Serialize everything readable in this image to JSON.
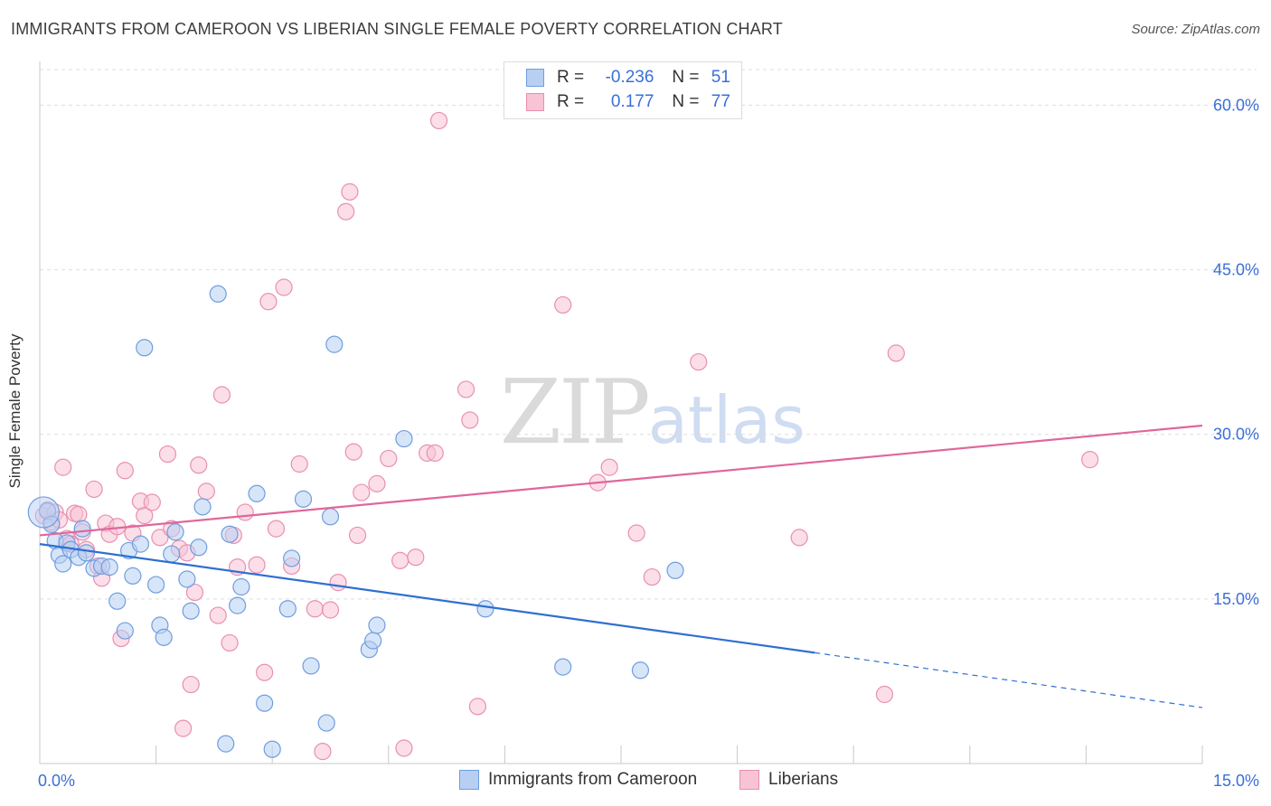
{
  "title": "IMMIGRANTS FROM CAMEROON VS LIBERIAN SINGLE FEMALE POVERTY CORRELATION CHART",
  "source": "Source: ZipAtlas.com",
  "watermark": {
    "zip": "ZIP",
    "atlas": "atlas"
  },
  "legend": {
    "series1": {
      "r_label": "R =",
      "r_value": "-0.236",
      "n_label": "N =",
      "n_value": "51"
    },
    "series2": {
      "r_label": "R =",
      "r_value": "0.177",
      "n_label": "N =",
      "n_value": "77"
    }
  },
  "colors": {
    "blue_fill": "#b7cff3",
    "blue_stroke": "#6f9de0",
    "blue_line": "#2f6fd0",
    "pink_fill": "#f7c3d5",
    "pink_stroke": "#e98fb0",
    "pink_line": "#e0679a",
    "tick_label": "#3a6fd8",
    "grid": "#dddddd"
  },
  "chart_data": {
    "type": "scatter",
    "title": "IMMIGRANTS FROM CAMEROON VS LIBERIAN SINGLE FEMALE POVERTY CORRELATION CHART",
    "xlabel": "",
    "ylabel": "Single Female Poverty",
    "xlim": [
      0,
      15
    ],
    "ylim": [
      0,
      63
    ],
    "x_tick_labels": [
      {
        "value": 0,
        "label": "0.0%"
      },
      {
        "value": 15,
        "label": "15.0%"
      }
    ],
    "y_tick_labels": [
      {
        "value": 15,
        "label": "15.0%"
      },
      {
        "value": 30,
        "label": "30.0%"
      },
      {
        "value": 45,
        "label": "45.0%"
      },
      {
        "value": 60,
        "label": "60.0%"
      }
    ],
    "series": [
      {
        "name": "Immigrants from Cameroon",
        "color": "#b7cff3",
        "r": -0.236,
        "n": 51,
        "trend": {
          "x1": 0,
          "y1": 20.0,
          "x2": 10.0,
          "y2": 10.1,
          "dash_to_x": 15,
          "dash_to_y": 5.1
        },
        "points": [
          [
            0.1,
            23.0
          ],
          [
            0.15,
            21.8
          ],
          [
            0.2,
            20.3
          ],
          [
            0.25,
            19.0
          ],
          [
            0.3,
            18.2
          ],
          [
            0.35,
            20.1
          ],
          [
            0.4,
            19.5
          ],
          [
            0.5,
            18.8
          ],
          [
            0.55,
            21.4
          ],
          [
            0.6,
            19.2
          ],
          [
            0.7,
            17.8
          ],
          [
            0.8,
            18.0
          ],
          [
            0.9,
            17.9
          ],
          [
            1.0,
            14.8
          ],
          [
            1.1,
            12.1
          ],
          [
            1.15,
            19.4
          ],
          [
            1.2,
            17.1
          ],
          [
            1.3,
            20.0
          ],
          [
            1.35,
            37.9
          ],
          [
            1.5,
            16.3
          ],
          [
            1.55,
            12.6
          ],
          [
            1.6,
            11.5
          ],
          [
            1.7,
            19.1
          ],
          [
            1.75,
            21.1
          ],
          [
            1.9,
            16.8
          ],
          [
            1.95,
            13.9
          ],
          [
            2.05,
            19.7
          ],
          [
            2.1,
            23.4
          ],
          [
            2.3,
            42.8
          ],
          [
            2.4,
            1.8
          ],
          [
            2.45,
            20.9
          ],
          [
            2.55,
            14.4
          ],
          [
            2.6,
            16.1
          ],
          [
            2.8,
            24.6
          ],
          [
            2.9,
            5.5
          ],
          [
            3.0,
            1.3
          ],
          [
            3.2,
            14.1
          ],
          [
            3.25,
            18.7
          ],
          [
            3.4,
            24.1
          ],
          [
            3.5,
            8.9
          ],
          [
            3.7,
            3.7
          ],
          [
            3.75,
            22.5
          ],
          [
            3.8,
            38.2
          ],
          [
            4.25,
            10.4
          ],
          [
            4.3,
            11.2
          ],
          [
            4.35,
            12.6
          ],
          [
            4.7,
            29.6
          ],
          [
            5.75,
            14.1
          ],
          [
            6.75,
            8.8
          ],
          [
            7.75,
            8.5
          ],
          [
            8.2,
            17.6
          ]
        ]
      },
      {
        "name": "Liberians",
        "color": "#f7c3d5",
        "r": 0.177,
        "n": 77,
        "trend": {
          "x1": 0,
          "y1": 20.8,
          "x2": 15,
          "y2": 30.8
        },
        "points": [
          [
            0.05,
            22.6
          ],
          [
            0.1,
            23.1
          ],
          [
            0.15,
            22.0
          ],
          [
            0.2,
            22.9
          ],
          [
            0.3,
            27.0
          ],
          [
            0.35,
            20.5
          ],
          [
            0.4,
            20.0
          ],
          [
            0.45,
            22.8
          ],
          [
            0.5,
            22.7
          ],
          [
            0.55,
            21.1
          ],
          [
            0.6,
            19.5
          ],
          [
            0.7,
            25.0
          ],
          [
            0.75,
            18.0
          ],
          [
            0.8,
            16.9
          ],
          [
            0.85,
            21.9
          ],
          [
            0.9,
            20.9
          ],
          [
            1.0,
            21.6
          ],
          [
            1.05,
            11.4
          ],
          [
            1.1,
            26.7
          ],
          [
            1.2,
            21.0
          ],
          [
            1.3,
            23.9
          ],
          [
            1.35,
            22.6
          ],
          [
            1.45,
            23.8
          ],
          [
            1.55,
            20.6
          ],
          [
            1.65,
            28.2
          ],
          [
            1.7,
            21.4
          ],
          [
            1.8,
            19.6
          ],
          [
            1.85,
            3.2
          ],
          [
            1.9,
            19.2
          ],
          [
            1.95,
            7.2
          ],
          [
            2.0,
            15.6
          ],
          [
            2.05,
            27.2
          ],
          [
            2.15,
            24.8
          ],
          [
            2.3,
            13.5
          ],
          [
            2.35,
            33.6
          ],
          [
            2.45,
            11.0
          ],
          [
            2.5,
            20.8
          ],
          [
            2.55,
            17.9
          ],
          [
            2.65,
            22.9
          ],
          [
            2.8,
            18.1
          ],
          [
            2.9,
            8.3
          ],
          [
            2.95,
            42.1
          ],
          [
            3.05,
            21.4
          ],
          [
            3.15,
            43.4
          ],
          [
            3.25,
            18.0
          ],
          [
            3.35,
            27.3
          ],
          [
            3.55,
            14.1
          ],
          [
            3.65,
            1.1
          ],
          [
            3.75,
            14.0
          ],
          [
            3.85,
            16.5
          ],
          [
            3.95,
            50.3
          ],
          [
            4.0,
            52.1
          ],
          [
            4.05,
            28.4
          ],
          [
            4.1,
            20.8
          ],
          [
            4.15,
            24.7
          ],
          [
            4.35,
            25.5
          ],
          [
            4.5,
            27.8
          ],
          [
            4.65,
            18.5
          ],
          [
            4.7,
            1.4
          ],
          [
            4.85,
            18.8
          ],
          [
            5.0,
            28.3
          ],
          [
            5.1,
            28.3
          ],
          [
            5.15,
            58.6
          ],
          [
            5.5,
            34.1
          ],
          [
            5.55,
            31.3
          ],
          [
            5.65,
            5.2
          ],
          [
            6.75,
            41.8
          ],
          [
            7.2,
            25.6
          ],
          [
            7.35,
            27.0
          ],
          [
            7.7,
            21.0
          ],
          [
            7.9,
            17.0
          ],
          [
            8.5,
            36.6
          ],
          [
            9.8,
            20.6
          ],
          [
            10.9,
            6.3
          ],
          [
            11.05,
            37.4
          ],
          [
            13.55,
            27.7
          ],
          [
            0.25,
            22.2
          ]
        ]
      }
    ]
  }
}
